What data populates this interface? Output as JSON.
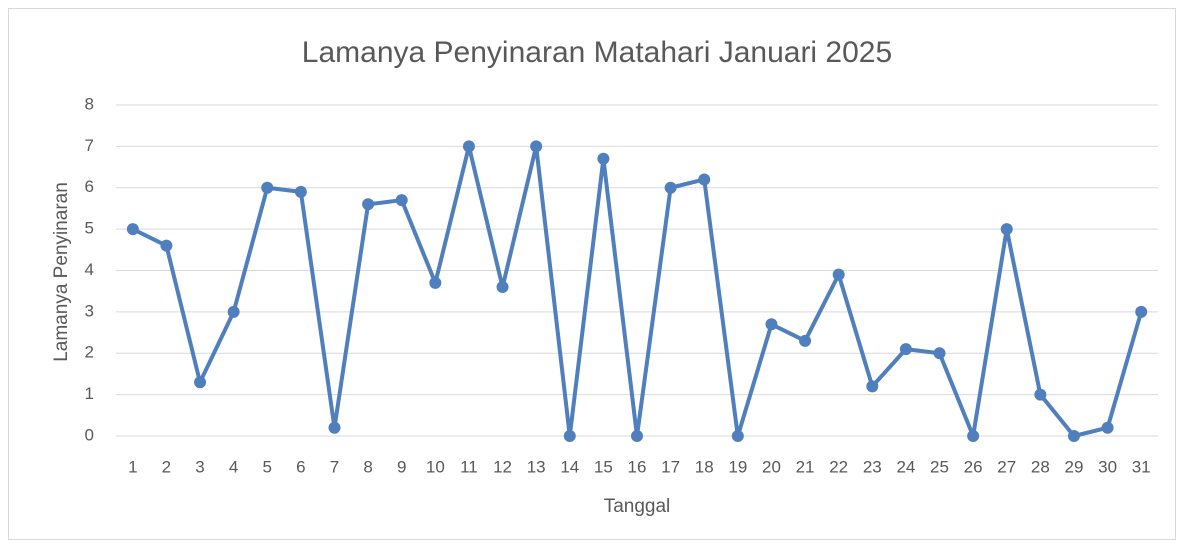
{
  "chart_data": {
    "type": "line",
    "title": "Lamanya Penyinaran Matahari Januari 2025",
    "x_label": "Tanggal",
    "y_label": "Lamanya Penyinaran",
    "categories": [
      "1",
      "2",
      "3",
      "4",
      "5",
      "6",
      "7",
      "8",
      "9",
      "10",
      "11",
      "12",
      "13",
      "14",
      "15",
      "16",
      "17",
      "18",
      "19",
      "20",
      "21",
      "22",
      "23",
      "24",
      "25",
      "26",
      "27",
      "28",
      "29",
      "30",
      "31"
    ],
    "series": [
      {
        "name": "Lamanya Penyinaran",
        "color": "#4f7fbd",
        "values": [
          5,
          4.6,
          1.3,
          3,
          6,
          5.9,
          0.2,
          5.6,
          5.7,
          3.7,
          7,
          3.6,
          7,
          0,
          6.7,
          0,
          6,
          6.2,
          0,
          2.7,
          2.3,
          3.9,
          1.2,
          2.1,
          2,
          0,
          5,
          1,
          0,
          0.2,
          3
        ]
      }
    ],
    "ylim": [
      0,
      8
    ],
    "yticks": [
      0,
      1,
      2,
      3,
      4,
      5,
      6,
      7,
      8
    ],
    "grid": true
  }
}
